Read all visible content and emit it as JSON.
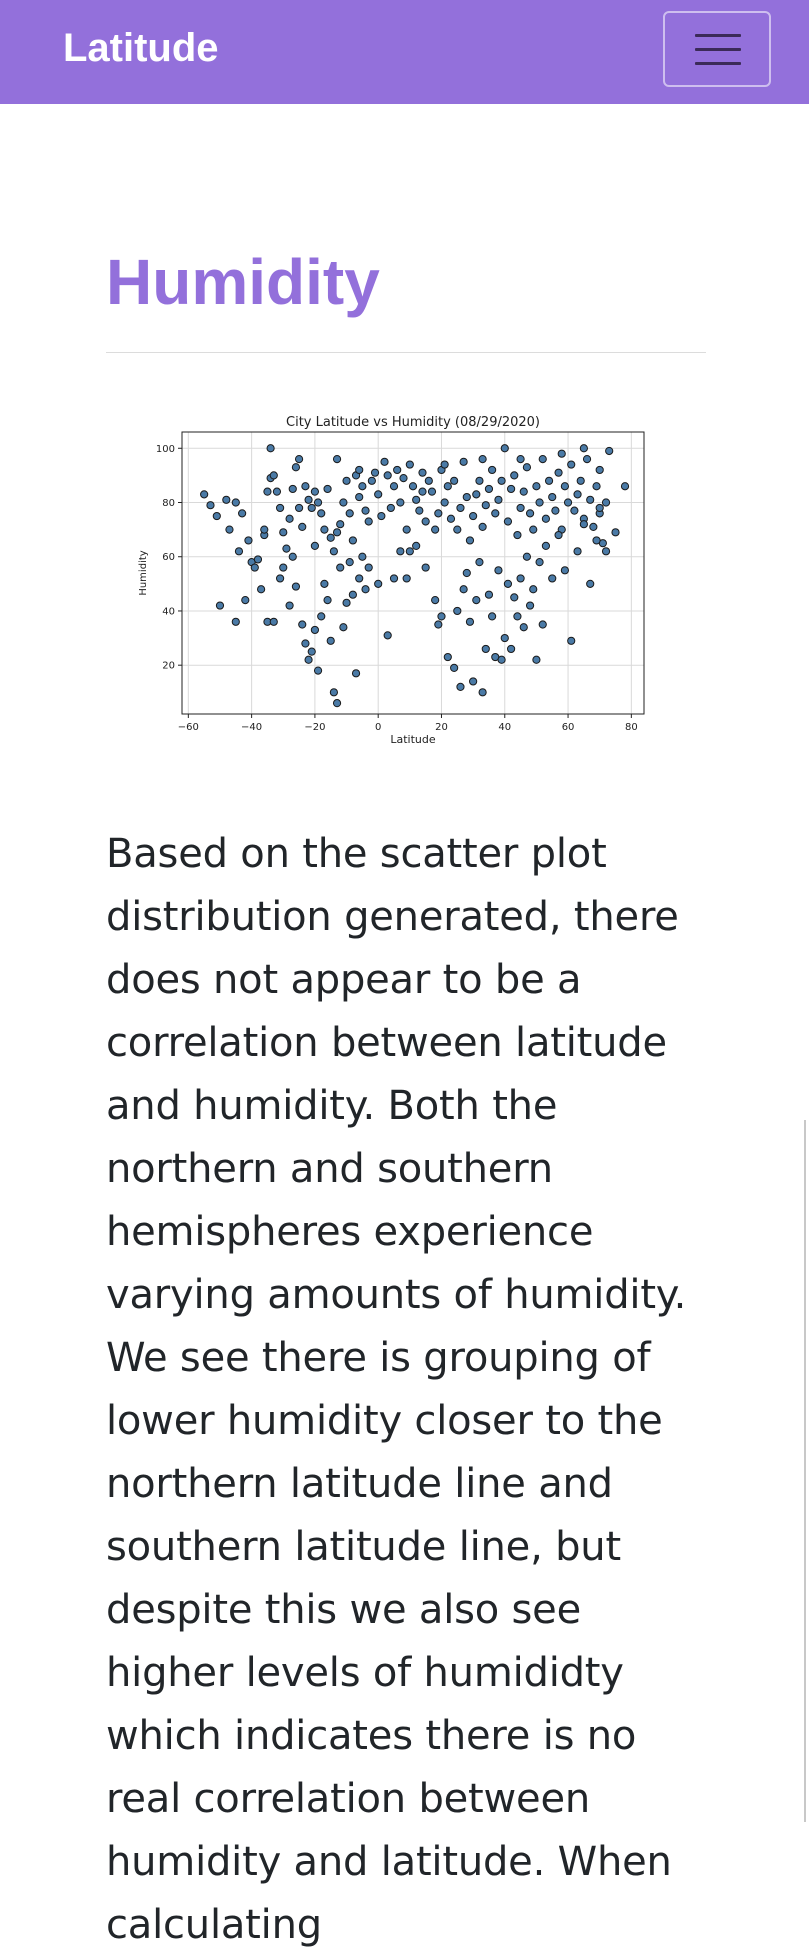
{
  "navbar": {
    "brand": "Latitude",
    "toggle_icon": "hamburger-menu-icon",
    "color": "#9370db"
  },
  "page": {
    "title": "Humidity",
    "paragraph": "Based on the scatter plot distribution generated, there does not appear to be a correlation between latitude and humidity. Both the northern and southern hemispheres experience varying amounts of humidity. We see there is grouping of lower humidity closer to the northern latitude line and southern latitude line, but despite this we also see higher levels of humididty which indicates there is no real correlation between humidity and latitude. When calculating"
  },
  "chart_data": {
    "type": "scatter",
    "title": "City Latitude vs Humidity (08/29/2020)",
    "xlabel": "Latitude",
    "ylabel": "Humidity",
    "xlim": [
      -62,
      84
    ],
    "ylim": [
      2,
      106
    ],
    "xticks": [
      "−60",
      "−40",
      "−20",
      "0",
      "20",
      "40",
      "60",
      "80"
    ],
    "xtick_values": [
      -60,
      -40,
      -20,
      0,
      20,
      40,
      60,
      80
    ],
    "yticks": [
      "20",
      "40",
      "60",
      "80",
      "100"
    ],
    "ytick_values": [
      20,
      40,
      60,
      80,
      100
    ],
    "grid": true,
    "marker_color": "#4a7aa6",
    "marker_edge": "#1a1a1a",
    "points": [
      [
        -55,
        83
      ],
      [
        -53,
        79
      ],
      [
        -51,
        75
      ],
      [
        -48,
        81
      ],
      [
        -47,
        70
      ],
      [
        -45,
        80
      ],
      [
        -43,
        76
      ],
      [
        -41,
        66
      ],
      [
        -40,
        58
      ],
      [
        -38,
        59
      ],
      [
        -36,
        68
      ],
      [
        -35,
        84
      ],
      [
        -34,
        89
      ],
      [
        -34,
        100
      ],
      [
        -33,
        90
      ],
      [
        -32,
        84
      ],
      [
        -31,
        78
      ],
      [
        -30,
        69
      ],
      [
        -29,
        63
      ],
      [
        -28,
        74
      ],
      [
        -27,
        85
      ],
      [
        -26,
        93
      ],
      [
        -25,
        78
      ],
      [
        -24,
        71
      ],
      [
        -23,
        86
      ],
      [
        -22,
        81
      ],
      [
        -21,
        78
      ],
      [
        -20,
        84
      ],
      [
        -19,
        80
      ],
      [
        -18,
        76
      ],
      [
        -17,
        70
      ],
      [
        -16,
        85
      ],
      [
        -15,
        67
      ],
      [
        -14,
        62
      ],
      [
        -13,
        69
      ],
      [
        -12,
        72
      ],
      [
        -11,
        80
      ],
      [
        -10,
        88
      ],
      [
        -9,
        76
      ],
      [
        -8,
        66
      ],
      [
        -7,
        90
      ],
      [
        -6,
        82
      ],
      [
        -5,
        86
      ],
      [
        -4,
        77
      ],
      [
        -3,
        73
      ],
      [
        -2,
        88
      ],
      [
        -1,
        91
      ],
      [
        0,
        83
      ],
      [
        1,
        75
      ],
      [
        2,
        95
      ],
      [
        3,
        90
      ],
      [
        4,
        78
      ],
      [
        5,
        86
      ],
      [
        6,
        92
      ],
      [
        7,
        80
      ],
      [
        8,
        89
      ],
      [
        9,
        70
      ],
      [
        10,
        94
      ],
      [
        11,
        86
      ],
      [
        12,
        81
      ],
      [
        13,
        77
      ],
      [
        14,
        91
      ],
      [
        15,
        73
      ],
      [
        16,
        88
      ],
      [
        17,
        84
      ],
      [
        18,
        70
      ],
      [
        19,
        76
      ],
      [
        20,
        92
      ],
      [
        21,
        80
      ],
      [
        22,
        86
      ],
      [
        23,
        74
      ],
      [
        24,
        88
      ],
      [
        25,
        70
      ],
      [
        26,
        78
      ],
      [
        27,
        95
      ],
      [
        28,
        82
      ],
      [
        29,
        66
      ],
      [
        30,
        75
      ],
      [
        31,
        83
      ],
      [
        32,
        88
      ],
      [
        33,
        71
      ],
      [
        34,
        79
      ],
      [
        35,
        85
      ],
      [
        36,
        92
      ],
      [
        37,
        76
      ],
      [
        38,
        81
      ],
      [
        39,
        88
      ],
      [
        40,
        100
      ],
      [
        41,
        73
      ],
      [
        42,
        85
      ],
      [
        43,
        90
      ],
      [
        44,
        68
      ],
      [
        45,
        78
      ],
      [
        46,
        84
      ],
      [
        47,
        93
      ],
      [
        48,
        76
      ],
      [
        49,
        70
      ],
      [
        50,
        86
      ],
      [
        51,
        80
      ],
      [
        52,
        96
      ],
      [
        53,
        74
      ],
      [
        54,
        88
      ],
      [
        55,
        82
      ],
      [
        56,
        77
      ],
      [
        57,
        91
      ],
      [
        58,
        70
      ],
      [
        59,
        86
      ],
      [
        60,
        80
      ],
      [
        61,
        94
      ],
      [
        62,
        77
      ],
      [
        63,
        83
      ],
      [
        64,
        88
      ],
      [
        65,
        74
      ],
      [
        66,
        96
      ],
      [
        67,
        81
      ],
      [
        68,
        71
      ],
      [
        69,
        86
      ],
      [
        70,
        76
      ],
      [
        71,
        65
      ],
      [
        72,
        80
      ],
      [
        73,
        99
      ],
      [
        75,
        69
      ],
      [
        78,
        86
      ],
      [
        -45,
        36
      ],
      [
        -42,
        44
      ],
      [
        -39,
        56
      ],
      [
        -37,
        48
      ],
      [
        -35,
        36
      ],
      [
        -33,
        36
      ],
      [
        -31,
        52
      ],
      [
        -30,
        56
      ],
      [
        -28,
        42
      ],
      [
        -26,
        49
      ],
      [
        -24,
        35
      ],
      [
        -23,
        28
      ],
      [
        -22,
        22
      ],
      [
        -21,
        25
      ],
      [
        -20,
        33
      ],
      [
        -19,
        18
      ],
      [
        -18,
        38
      ],
      [
        -17,
        50
      ],
      [
        -16,
        44
      ],
      [
        -15,
        29
      ],
      [
        -14,
        10
      ],
      [
        -13,
        6
      ],
      [
        -12,
        56
      ],
      [
        -11,
        34
      ],
      [
        -10,
        43
      ],
      [
        -9,
        58
      ],
      [
        -8,
        46
      ],
      [
        -7,
        17
      ],
      [
        -6,
        52
      ],
      [
        -5,
        60
      ],
      [
        -4,
        48
      ],
      [
        -3,
        56
      ],
      [
        0,
        50
      ],
      [
        3,
        31
      ],
      [
        5,
        52
      ],
      [
        7,
        62
      ],
      [
        9,
        52
      ],
      [
        12,
        64
      ],
      [
        15,
        56
      ],
      [
        18,
        44
      ],
      [
        19,
        35
      ],
      [
        20,
        38
      ],
      [
        22,
        23
      ],
      [
        24,
        19
      ],
      [
        25,
        40
      ],
      [
        26,
        12
      ],
      [
        27,
        48
      ],
      [
        28,
        54
      ],
      [
        29,
        36
      ],
      [
        30,
        14
      ],
      [
        31,
        44
      ],
      [
        32,
        58
      ],
      [
        33,
        10
      ],
      [
        34,
        26
      ],
      [
        35,
        46
      ],
      [
        36,
        38
      ],
      [
        37,
        23
      ],
      [
        38,
        55
      ],
      [
        39,
        22
      ],
      [
        40,
        30
      ],
      [
        41,
        50
      ],
      [
        42,
        26
      ],
      [
        43,
        45
      ],
      [
        44,
        38
      ],
      [
        45,
        52
      ],
      [
        46,
        34
      ],
      [
        47,
        60
      ],
      [
        48,
        42
      ],
      [
        49,
        48
      ],
      [
        50,
        22
      ],
      [
        51,
        58
      ],
      [
        52,
        35
      ],
      [
        53,
        64
      ],
      [
        55,
        52
      ],
      [
        57,
        68
      ],
      [
        59,
        55
      ],
      [
        61,
        29
      ],
      [
        63,
        62
      ],
      [
        65,
        72
      ],
      [
        67,
        50
      ],
      [
        69,
        66
      ],
      [
        70,
        78
      ],
      [
        72,
        62
      ],
      [
        -50,
        42
      ],
      [
        -44,
        62
      ],
      [
        -36,
        70
      ],
      [
        -27,
        60
      ],
      [
        -25,
        96
      ],
      [
        -20,
        64
      ],
      [
        -13,
        96
      ],
      [
        -6,
        92
      ],
      [
        10,
        62
      ],
      [
        14,
        84
      ],
      [
        21,
        94
      ],
      [
        33,
        96
      ],
      [
        45,
        96
      ],
      [
        58,
        98
      ],
      [
        65,
        100
      ],
      [
        70,
        92
      ]
    ]
  }
}
